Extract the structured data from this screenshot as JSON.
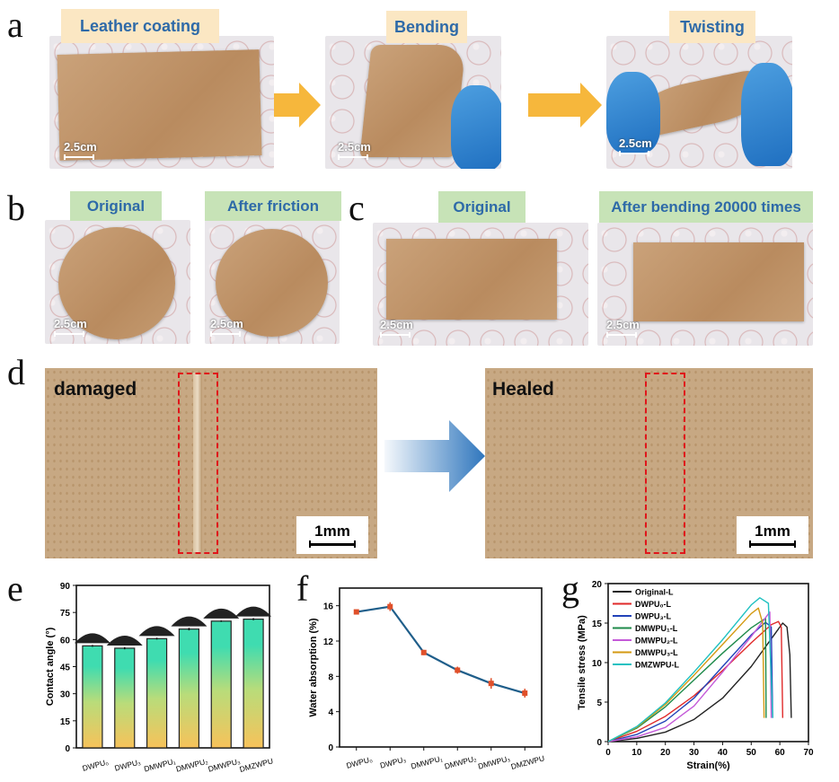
{
  "panels": {
    "a": "a",
    "b": "b",
    "c": "c",
    "d": "d",
    "e": "e",
    "f": "f",
    "g": "g"
  },
  "a": {
    "labels": [
      "Leather coating",
      "Bending",
      "Twisting"
    ],
    "scale": "2.5cm"
  },
  "b": {
    "labels": [
      "Original",
      "After friction"
    ],
    "scale": "2.5cm"
  },
  "c": {
    "labels": [
      "Original",
      "After bending 20000 times"
    ],
    "scale": "2.5cm"
  },
  "d": {
    "labels": [
      "damaged",
      "Healed"
    ],
    "scale": "1mm"
  },
  "colors": {
    "arrow_a": "#f6b73c",
    "arrow_d": "#2f76bd",
    "dash": "#e0161b"
  },
  "chart_data": [
    {
      "type": "bar",
      "panel": "e",
      "ylabel": "Contact angle (°)",
      "ylim": [
        0,
        90
      ],
      "yticks": [
        0,
        15,
        30,
        45,
        60,
        75,
        90
      ],
      "categories": [
        "DWPU₀",
        "DWPU₃",
        "DMWPU₁",
        "DMWPU₂",
        "DMWPU₃",
        "DMZWPU"
      ],
      "values": [
        56.5,
        55.2,
        60.5,
        65.8,
        70.2,
        71.3
      ],
      "errors": [
        0.5,
        0.6,
        0.5,
        0.7,
        0.4,
        0.6
      ]
    },
    {
      "type": "line",
      "panel": "f",
      "ylabel": "Water absorption (%)",
      "ylim": [
        0,
        18
      ],
      "yticks": [
        0,
        4,
        8,
        12,
        16
      ],
      "categories": [
        "DWPU₀",
        "DWPU₃",
        "DMWPU₁",
        "DMWPU₂",
        "DMWPU₃",
        "DMZWPU"
      ],
      "values": [
        15.3,
        15.9,
        10.7,
        8.7,
        7.2,
        6.1
      ],
      "errors": [
        0.2,
        0.5,
        0.3,
        0.4,
        0.6,
        0.5
      ]
    },
    {
      "type": "line",
      "panel": "g",
      "xlabel": "Strain(%)",
      "ylabel": "Tensile stress (MPa)",
      "xlim": [
        0,
        70
      ],
      "ylim": [
        0,
        20
      ],
      "xticks": [
        0,
        10,
        20,
        30,
        40,
        50,
        60,
        70
      ],
      "yticks": [
        0,
        5,
        10,
        15,
        20
      ],
      "legend": "top-left",
      "series": [
        {
          "name": "Original-L",
          "color": "#222222",
          "points": [
            [
              0,
              0
            ],
            [
              10,
              0.4
            ],
            [
              20,
              1.2
            ],
            [
              30,
              2.8
            ],
            [
              40,
              5.5
            ],
            [
              50,
              9.5
            ],
            [
              58,
              13.5
            ],
            [
              61,
              15
            ],
            [
              62.5,
              14.5
            ],
            [
              63.5,
              11
            ],
            [
              64,
              3
            ]
          ]
        },
        {
          "name": "DWPU₀-L",
          "color": "#e02a2a",
          "points": [
            [
              0,
              0
            ],
            [
              10,
              1.3
            ],
            [
              20,
              3.2
            ],
            [
              30,
              5.8
            ],
            [
              40,
              9
            ],
            [
              50,
              12.5
            ],
            [
              57,
              14.8
            ],
            [
              59.5,
              15.2
            ],
            [
              60.5,
              14.5
            ],
            [
              61,
              3
            ]
          ]
        },
        {
          "name": "DWPU₃-L",
          "color": "#2242b8",
          "points": [
            [
              0,
              0
            ],
            [
              10,
              0.9
            ],
            [
              20,
              2.6
            ],
            [
              30,
              5.5
            ],
            [
              40,
              9.5
            ],
            [
              50,
              13.5
            ],
            [
              55,
              15.1
            ],
            [
              57,
              14.5
            ],
            [
              57.5,
              3
            ]
          ]
        },
        {
          "name": "DMWPU₁-L",
          "color": "#1e8a4a",
          "points": [
            [
              0,
              0
            ],
            [
              10,
              1.7
            ],
            [
              20,
              4.4
            ],
            [
              30,
              7.8
            ],
            [
              40,
              11.2
            ],
            [
              50,
              14.4
            ],
            [
              55,
              15.6
            ],
            [
              55.2,
              3
            ]
          ]
        },
        {
          "name": "DMWPU₂-L",
          "color": "#c45ad8",
          "points": [
            [
              0,
              0
            ],
            [
              10,
              0.6
            ],
            [
              20,
              1.8
            ],
            [
              30,
              4.5
            ],
            [
              40,
              8.8
            ],
            [
              50,
              13.3
            ],
            [
              56.5,
              16.4
            ],
            [
              57,
              3
            ]
          ]
        },
        {
          "name": "DMWPU₃-L",
          "color": "#d49a12",
          "points": [
            [
              0,
              0
            ],
            [
              10,
              1.8
            ],
            [
              20,
              4.7
            ],
            [
              30,
              8.4
            ],
            [
              40,
              12.3
            ],
            [
              50,
              16.2
            ],
            [
              52.5,
              16.9
            ],
            [
              54,
              15
            ],
            [
              54.5,
              3
            ]
          ]
        },
        {
          "name": "DMZWPU-L",
          "color": "#1fc1c1",
          "points": [
            [
              0,
              0
            ],
            [
              10,
              1.9
            ],
            [
              20,
              4.9
            ],
            [
              30,
              8.8
            ],
            [
              40,
              12.9
            ],
            [
              50,
              17.3
            ],
            [
              53,
              18.2
            ],
            [
              56,
              17.5
            ],
            [
              57.5,
              3
            ]
          ]
        }
      ]
    }
  ]
}
